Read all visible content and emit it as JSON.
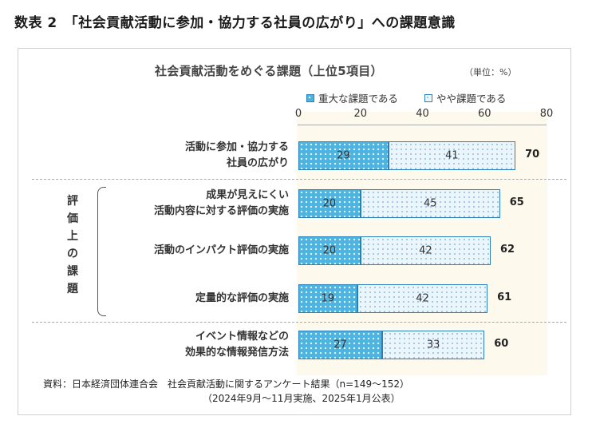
{
  "figure_title": "数表 2　「社会貢献活動に参加・協力する社員の広がり」への課題意識",
  "chart_data": {
    "type": "bar",
    "orientation": "horizontal",
    "stacked": true,
    "title": "社会貢献活動をめぐる課題（上位5項目）",
    "unit": "（単位：%）",
    "xlim": [
      0,
      80
    ],
    "ticks": [
      "0",
      "20",
      "40",
      "60",
      "80"
    ],
    "legend_position": "top",
    "categories": [
      [
        "活動に参加・協力する",
        "社員の広がり"
      ],
      [
        "成果が見えにくい",
        "活動内容に対する評価の実施"
      ],
      [
        "活動のインパクト評価の実施"
      ],
      [
        "定量的な評価の実施"
      ],
      [
        "イベント情報などの",
        "効果的な情報発信方法"
      ]
    ],
    "series": [
      {
        "name": "重大な課題である",
        "values": [
          29,
          20,
          20,
          19,
          27
        ]
      },
      {
        "name": "やや課題である",
        "values": [
          41,
          45,
          42,
          42,
          33
        ]
      }
    ],
    "totals": [
      70,
      65,
      62,
      61,
      60
    ],
    "group_label": "評価上の課題",
    "colors": {
      "major": "#4db3e0",
      "minor": "#eaf5fc",
      "border": "#2b7fb8"
    }
  },
  "source": {
    "line1": "資料：日本経済団体連合会　社会貢献活動に関するアンケート結果（n=149〜152）",
    "line2": "（2024年9月〜11月実施、2025年1月公表）"
  }
}
